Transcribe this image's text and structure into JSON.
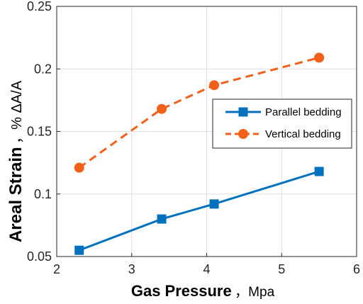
{
  "chart_data": {
    "type": "line",
    "xlabel_main": "Gas Pressure",
    "xlabel_unit": "，Mpa",
    "ylabel_main": "Areal Strain",
    "ylabel_unit": "，% ΔA/A",
    "xlim": [
      2,
      6
    ],
    "ylim": [
      0.05,
      0.25
    ],
    "xticks": [
      2,
      3,
      4,
      5,
      6
    ],
    "yticks": [
      0.05,
      0.1,
      0.15,
      0.2,
      0.25
    ],
    "xtick_labels": [
      "2",
      "3",
      "4",
      "5",
      "6"
    ],
    "ytick_labels": [
      "0.05",
      "0.1",
      "0.15",
      "0.2",
      "0.25"
    ],
    "grid": true,
    "legend_position": "right",
    "series": [
      {
        "name": "Parallel bedding",
        "color": "#0072BD",
        "line_style": "solid",
        "marker": "square",
        "x": [
          2.3,
          3.4,
          4.1,
          5.5
        ],
        "y": [
          0.055,
          0.08,
          0.092,
          0.118
        ]
      },
      {
        "name": "Vertical bedding",
        "color": "#F2601A",
        "line_style": "dashed",
        "marker": "circle",
        "x": [
          2.3,
          3.4,
          4.1,
          5.5
        ],
        "y": [
          0.121,
          0.168,
          0.187,
          0.209
        ]
      }
    ]
  }
}
